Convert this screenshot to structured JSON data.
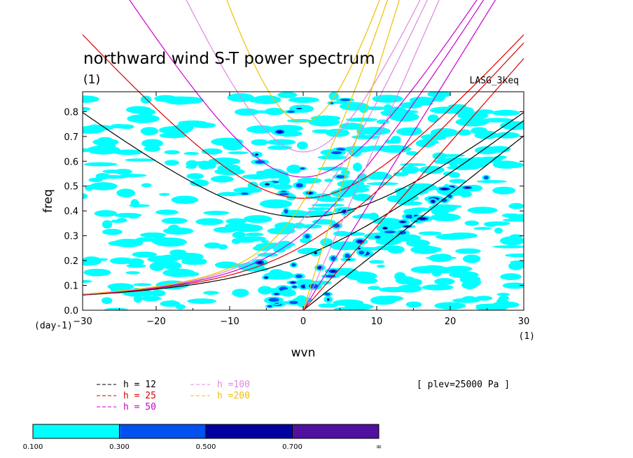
{
  "chart_data": {
    "type": "contour",
    "title": "northward wind S-T power spectrum",
    "subtitle": "(1)",
    "model_label": "LASG_3keq",
    "xlabel": "wvn",
    "x_unit": "(1)",
    "ylabel": "freq",
    "y_unit": "(day-1)",
    "xlim": [
      -30,
      30
    ],
    "ylim": [
      0.0,
      0.88
    ],
    "xticks": [
      "-30",
      "-20",
      "-10",
      "0",
      "10",
      "20",
      "30"
    ],
    "yticks": [
      "0.0",
      "0.1",
      "0.2",
      "0.3",
      "0.4",
      "0.5",
      "0.6",
      "0.7",
      "0.8"
    ],
    "level_note": "[ plev=25000 Pa ]",
    "dispersion_curves": [
      {
        "label": "h = 12",
        "color": "#000000"
      },
      {
        "label": "h = 25",
        "color": "#dd0000"
      },
      {
        "label": "h = 50",
        "color": "#cc00cc"
      },
      {
        "label": "h =100",
        "color": "#dd88dd"
      },
      {
        "label": "h =200",
        "color": "#f0c000"
      }
    ],
    "colorbar": {
      "levels": [
        "0.100",
        "0.300",
        "0.500",
        "0.700",
        "∞"
      ],
      "colors": [
        "#00ffff",
        "#0050f0",
        "#0000a0",
        "#5010a0"
      ]
    }
  }
}
